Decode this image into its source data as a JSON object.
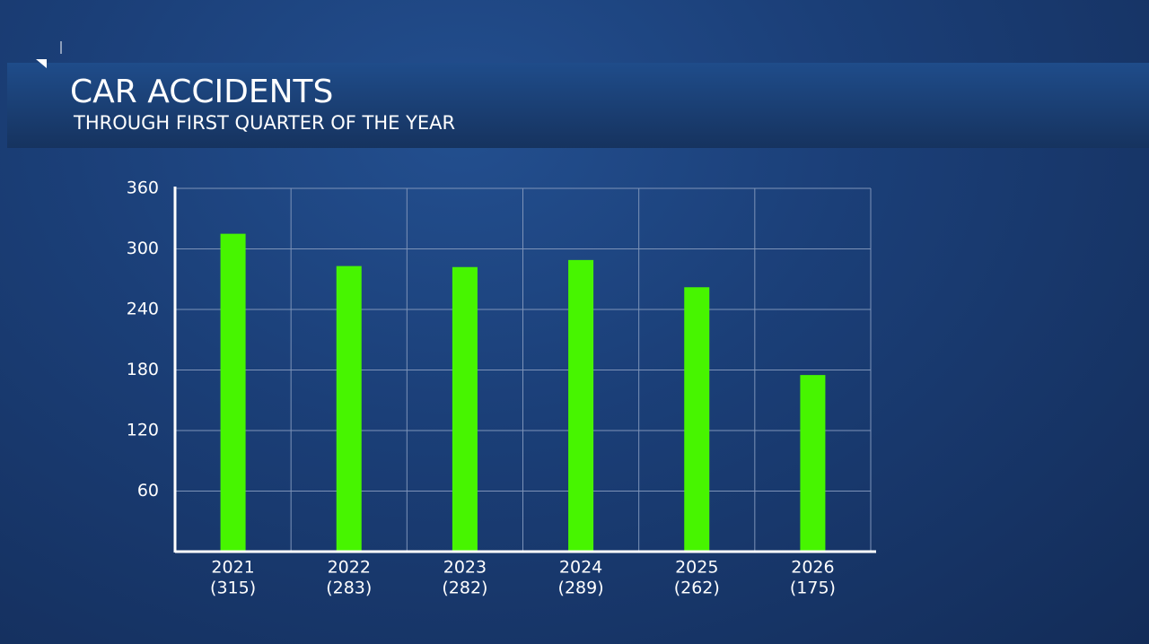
{
  "chart_data": {
    "type": "bar",
    "title": "CAR ACCIDENTS",
    "subtitle": "THROUGH FIRST QUARTER OF THE YEAR",
    "categories": [
      "2021",
      "2022",
      "2023",
      "2024",
      "2025",
      "2026"
    ],
    "values": [
      315,
      283,
      282,
      289,
      262,
      175
    ],
    "value_labels": [
      "(315)",
      "(283)",
      "(282)",
      "(289)",
      "(262)",
      "(175)"
    ],
    "color": "#47f500",
    "ylim": [
      0,
      360
    ],
    "yticks": [
      60,
      120,
      180,
      240,
      300,
      360
    ],
    "grid": true
  }
}
